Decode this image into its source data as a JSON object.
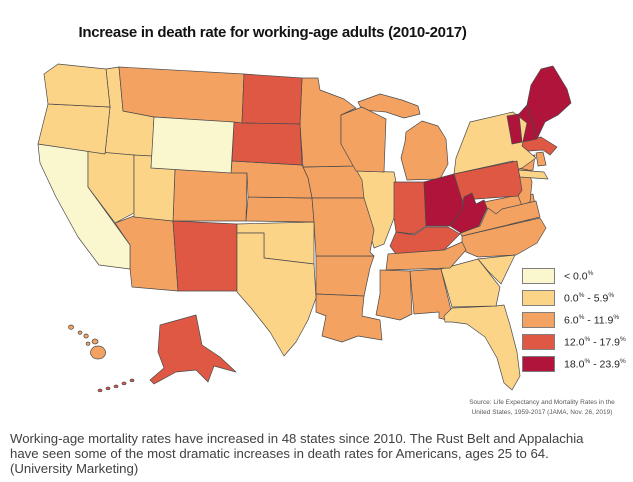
{
  "title": "Increase in death rate for working-age adults (2010-2017)",
  "source": {
    "lines": [
      "Source: Life Expectancy and Mortality Rates in the",
      "United States, 1959-2017 (JAMA, Nov. 26, 2019)"
    ]
  },
  "caption": {
    "lines": [
      "Working-age mortality rates have increased in 48 states since 2010. The Rust Belt and Appalachia",
      "have seen some of the most dramatic increases in death rates for Americans, ages 25 to 64.",
      "(University Marketing)"
    ]
  },
  "chart_data": {
    "type": "choropleth",
    "title": "Increase in death rate for working-age adults (2010-2017)",
    "unit": "percent increase in death rate, 2010-2017",
    "legend_bins": [
      "< 0.0%",
      "0.0% - 5.9%",
      "6.0% - 11.9%",
      "12.0% - 17.9%",
      "18.0% - 23.9%"
    ],
    "bin_colors": [
      "#FAF6CD",
      "#FBD488",
      "#F3A261",
      "#DF5843",
      "#B0143A"
    ],
    "border_color": "#4a4a4c",
    "states": [
      {
        "id": "AL",
        "name": "Alabama",
        "bin": 3
      },
      {
        "id": "AK",
        "name": "Alaska",
        "bin": 4
      },
      {
        "id": "AZ",
        "name": "Arizona",
        "bin": 3
      },
      {
        "id": "AR",
        "name": "Arkansas",
        "bin": 3
      },
      {
        "id": "CA",
        "name": "California",
        "bin": 1
      },
      {
        "id": "CO",
        "name": "Colorado",
        "bin": 3
      },
      {
        "id": "CT",
        "name": "Connecticut",
        "bin": 3
      },
      {
        "id": "DE",
        "name": "Delaware",
        "bin": 3
      },
      {
        "id": "FL",
        "name": "Florida",
        "bin": 2
      },
      {
        "id": "GA",
        "name": "Georgia",
        "bin": 2
      },
      {
        "id": "HI",
        "name": "Hawaii",
        "bin": 3
      },
      {
        "id": "ID",
        "name": "Idaho",
        "bin": 2
      },
      {
        "id": "IL",
        "name": "Illinois",
        "bin": 2
      },
      {
        "id": "IN",
        "name": "Indiana",
        "bin": 4
      },
      {
        "id": "IA",
        "name": "Iowa",
        "bin": 3
      },
      {
        "id": "KS",
        "name": "Kansas",
        "bin": 3
      },
      {
        "id": "KY",
        "name": "Kentucky",
        "bin": 4
      },
      {
        "id": "LA",
        "name": "Louisiana",
        "bin": 3
      },
      {
        "id": "ME",
        "name": "Maine",
        "bin": 5
      },
      {
        "id": "MD",
        "name": "Maryland",
        "bin": 3
      },
      {
        "id": "MA",
        "name": "Massachusetts",
        "bin": 4
      },
      {
        "id": "MI",
        "name": "Michigan",
        "bin": 3
      },
      {
        "id": "MN",
        "name": "Minnesota",
        "bin": 3
      },
      {
        "id": "MS",
        "name": "Mississippi",
        "bin": 3
      },
      {
        "id": "MO",
        "name": "Missouri",
        "bin": 3
      },
      {
        "id": "MT",
        "name": "Montana",
        "bin": 3
      },
      {
        "id": "NE",
        "name": "Nebraska",
        "bin": 3
      },
      {
        "id": "NV",
        "name": "Nevada",
        "bin": 2
      },
      {
        "id": "NH",
        "name": "New Hampshire",
        "bin": 5
      },
      {
        "id": "NJ",
        "name": "New Jersey",
        "bin": 3
      },
      {
        "id": "NM",
        "name": "New Mexico",
        "bin": 4
      },
      {
        "id": "NY",
        "name": "New York",
        "bin": 2
      },
      {
        "id": "NC",
        "name": "North Carolina",
        "bin": 3
      },
      {
        "id": "ND",
        "name": "North Dakota",
        "bin": 4
      },
      {
        "id": "OH",
        "name": "Ohio",
        "bin": 5
      },
      {
        "id": "OK",
        "name": "Oklahoma",
        "bin": 2
      },
      {
        "id": "OR",
        "name": "Oregon",
        "bin": 2
      },
      {
        "id": "PA",
        "name": "Pennsylvania",
        "bin": 4
      },
      {
        "id": "RI",
        "name": "Rhode Island",
        "bin": 3
      },
      {
        "id": "SC",
        "name": "South Carolina",
        "bin": 2
      },
      {
        "id": "SD",
        "name": "South Dakota",
        "bin": 4
      },
      {
        "id": "TN",
        "name": "Tennessee",
        "bin": 3
      },
      {
        "id": "TX",
        "name": "Texas",
        "bin": 2
      },
      {
        "id": "UT",
        "name": "Utah",
        "bin": 2
      },
      {
        "id": "VT",
        "name": "Vermont",
        "bin": 5
      },
      {
        "id": "VA",
        "name": "Virginia",
        "bin": 3
      },
      {
        "id": "WA",
        "name": "Washington",
        "bin": 2
      },
      {
        "id": "WV",
        "name": "West Virginia",
        "bin": 5
      },
      {
        "id": "WI",
        "name": "Wisconsin",
        "bin": 3
      },
      {
        "id": "WY",
        "name": "Wyoming",
        "bin": 1
      }
    ]
  }
}
